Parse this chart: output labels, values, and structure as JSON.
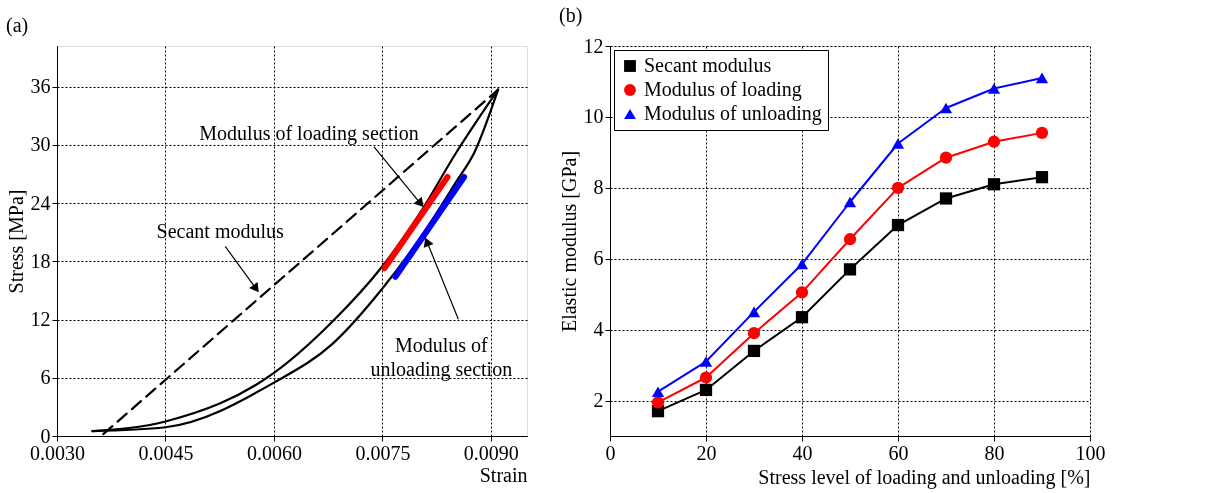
{
  "chart_data": [
    {
      "type": "line",
      "title": "(a)",
      "xlabel": "Strain",
      "ylabel": "Stress [MPa]",
      "grid": true,
      "xlim": [
        0.003,
        0.0095
      ],
      "ylim": [
        0,
        40.2
      ],
      "xticks": [
        {
          "value": 0.003,
          "label": "0.0030"
        },
        0.0045,
        {
          "value": 0.006,
          "label": "0.0060"
        },
        0.0075,
        {
          "value": 0.009,
          "label": "0.0090"
        }
      ],
      "yticks": [
        0,
        6,
        12,
        18,
        24,
        30,
        36
      ],
      "series": [
        {
          "color": "#000000",
          "line_style": "solid",
          "x": [
            0.00349,
            0.0045,
            0.006,
            0.00681,
            0.0075,
            0.00803,
            0.00852,
            0.0091
          ],
          "values": [
            0.5,
            1.5,
            6.5,
            11.8,
            17.5,
            23.1,
            29.2,
            35.7
          ]
        },
        {
          "color": "#000000",
          "line_style": "solid",
          "x": [
            0.00349,
            0.0045,
            0.006,
            0.00681,
            0.0075,
            0.00803,
            0.00852,
            0.00877,
            0.0091
          ],
          "values": [
            0.5,
            0.9,
            5.5,
            9.5,
            15.2,
            20.5,
            26.2,
            29.2,
            35.7
          ]
        },
        {
          "color": "#000000",
          "line_style": "dashed",
          "x": [
            0.00364,
            0.0091
          ],
          "values": [
            0.2,
            35.7
          ]
        },
        {
          "color": "#ff0000",
          "line_style": "solid",
          "x": [
            0.00753,
            0.0084
          ],
          "values": [
            17.3,
            26.7
          ]
        },
        {
          "color": "#0000ff",
          "line_style": "solid",
          "x": [
            0.00768,
            0.00863
          ],
          "values": [
            16.4,
            26.7
          ]
        }
      ],
      "annotations": [
        {
          "text": "Modulus of loading section",
          "x": 0.00809,
          "y": 23.4
        },
        {
          "text": "Secant modulus",
          "x": 0.00581,
          "y": 14.6
        },
        {
          "text": "Modulus of\nunloading section",
          "x": 0.00808,
          "y": 20.7
        }
      ]
    },
    {
      "type": "line",
      "title": "(b)",
      "xlabel": "Stress level of loading and unloading [%]",
      "ylabel": "Elastic modulus [GPa]",
      "grid": true,
      "legend": "top left",
      "xlim": [
        0,
        100
      ],
      "ylim": [
        1,
        12
      ],
      "xticks": [
        0,
        20,
        40,
        60,
        80,
        100
      ],
      "yticks": [
        2,
        4,
        6,
        8,
        10,
        12
      ],
      "x": [
        10,
        20,
        30,
        40,
        50,
        60,
        70,
        80,
        90
      ],
      "series": [
        {
          "name": "Secant modulus",
          "color": "#000000",
          "marker": "square",
          "values": [
            1.7,
            2.3,
            3.4,
            4.35,
            5.7,
            6.95,
            7.7,
            8.1,
            8.3
          ]
        },
        {
          "name": "Modulus of loading",
          "color": "#ff0000",
          "marker": "circle",
          "values": [
            1.95,
            2.65,
            3.9,
            5.05,
            6.55,
            8.0,
            8.85,
            9.3,
            9.55
          ]
        },
        {
          "name": "Modulus of unloading",
          "color": "#0000ff",
          "marker": "triangle",
          "values": [
            2.25,
            3.1,
            4.5,
            5.85,
            7.6,
            9.25,
            10.25,
            10.8,
            11.1
          ]
        }
      ]
    }
  ]
}
